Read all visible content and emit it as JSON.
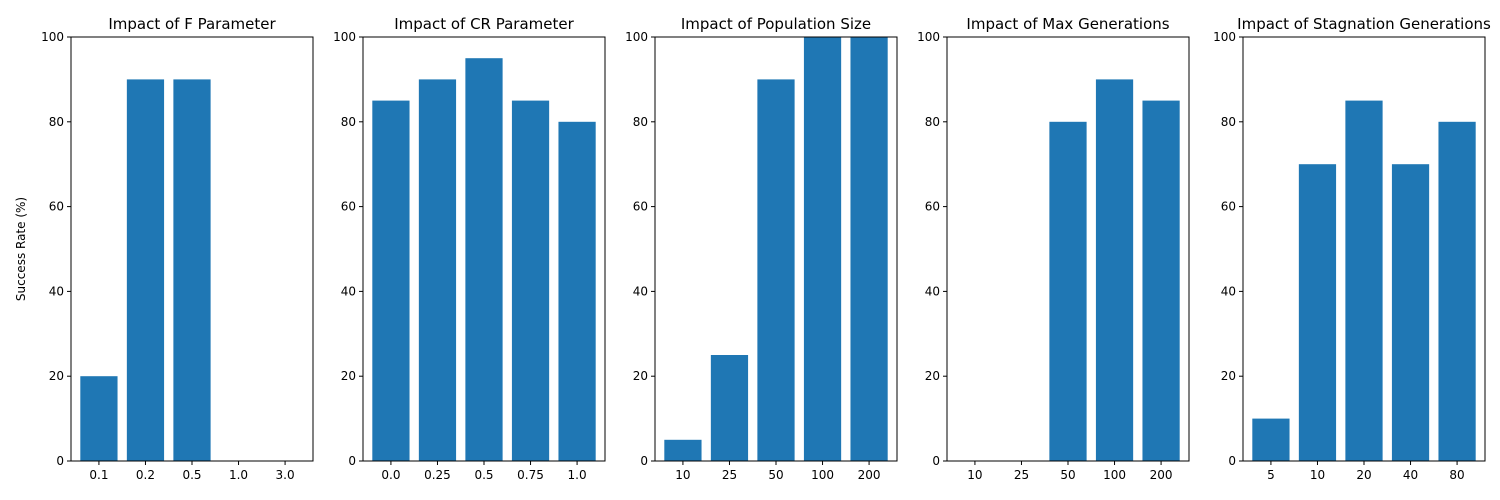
{
  "chart_data": [
    {
      "type": "bar",
      "title": "Impact of F Parameter",
      "xlabel": "",
      "ylabel": "Success Rate (%)",
      "categories": [
        "0.1",
        "0.2",
        "0.5",
        "1.0",
        "3.0"
      ],
      "values": [
        20,
        90,
        90,
        0,
        0
      ],
      "ylim": [
        0,
        100
      ],
      "yticks": [
        "0",
        "20",
        "40",
        "60",
        "80",
        "100"
      ],
      "color": "#1f77b4"
    },
    {
      "type": "bar",
      "title": "Impact of CR Parameter",
      "xlabel": "",
      "ylabel": "",
      "categories": [
        "0.0",
        "0.25",
        "0.5",
        "0.75",
        "1.0"
      ],
      "values": [
        85,
        90,
        95,
        85,
        80
      ],
      "ylim": [
        0,
        100
      ],
      "yticks": [
        "0",
        "20",
        "40",
        "60",
        "80",
        "100"
      ],
      "color": "#1f77b4"
    },
    {
      "type": "bar",
      "title": "Impact of Population Size",
      "xlabel": "",
      "ylabel": "",
      "categories": [
        "10",
        "25",
        "50",
        "100",
        "200"
      ],
      "values": [
        5,
        25,
        90,
        100,
        100
      ],
      "ylim": [
        0,
        100
      ],
      "yticks": [
        "0",
        "20",
        "40",
        "60",
        "80",
        "100"
      ],
      "color": "#1f77b4"
    },
    {
      "type": "bar",
      "title": "Impact of Max Generations",
      "xlabel": "",
      "ylabel": "",
      "categories": [
        "10",
        "25",
        "50",
        "100",
        "200"
      ],
      "values": [
        0,
        0,
        80,
        90,
        85
      ],
      "ylim": [
        0,
        100
      ],
      "yticks": [
        "0",
        "20",
        "40",
        "60",
        "80",
        "100"
      ],
      "color": "#1f77b4"
    },
    {
      "type": "bar",
      "title": "Impact of Stagnation Generations",
      "xlabel": "",
      "ylabel": "",
      "categories": [
        "5",
        "10",
        "20",
        "40",
        "80"
      ],
      "values": [
        10,
        70,
        85,
        70,
        80
      ],
      "ylim": [
        0,
        100
      ],
      "yticks": [
        "0",
        "20",
        "40",
        "60",
        "80",
        "100"
      ],
      "color": "#1f77b4"
    }
  ]
}
